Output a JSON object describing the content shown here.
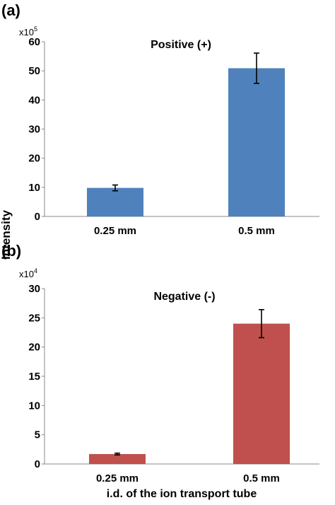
{
  "axis_label_y": "Intensity",
  "axis_label_x": "i.d. of the ion transport tube",
  "chart_data": [
    {
      "type": "bar",
      "panel": "(a)",
      "title": "Positive (+)",
      "multiplier_base": "x10",
      "multiplier_exp": "5",
      "categories": [
        "0.25 mm",
        "0.5 mm"
      ],
      "values": [
        9.8,
        50.9
      ],
      "error": [
        1.0,
        5.2
      ],
      "ylim": [
        0,
        60
      ],
      "yticks": [
        0,
        10,
        20,
        30,
        40,
        50,
        60
      ],
      "color": "#4F81BD",
      "ylabel": "Intensity",
      "xlabel": ""
    },
    {
      "type": "bar",
      "panel": "(b)",
      "title": "Negative (-)",
      "multiplier_base": "x10",
      "multiplier_exp": "4",
      "categories": [
        "0.25 mm",
        "0.5 mm"
      ],
      "values": [
        1.7,
        24.0
      ],
      "error": [
        0.15,
        2.4
      ],
      "ylim": [
        0,
        30
      ],
      "yticks": [
        0,
        5,
        10,
        15,
        20,
        25,
        30
      ],
      "color": "#C0504D",
      "ylabel": "Intensity",
      "xlabel": "i.d. of the ion transport tube"
    }
  ]
}
